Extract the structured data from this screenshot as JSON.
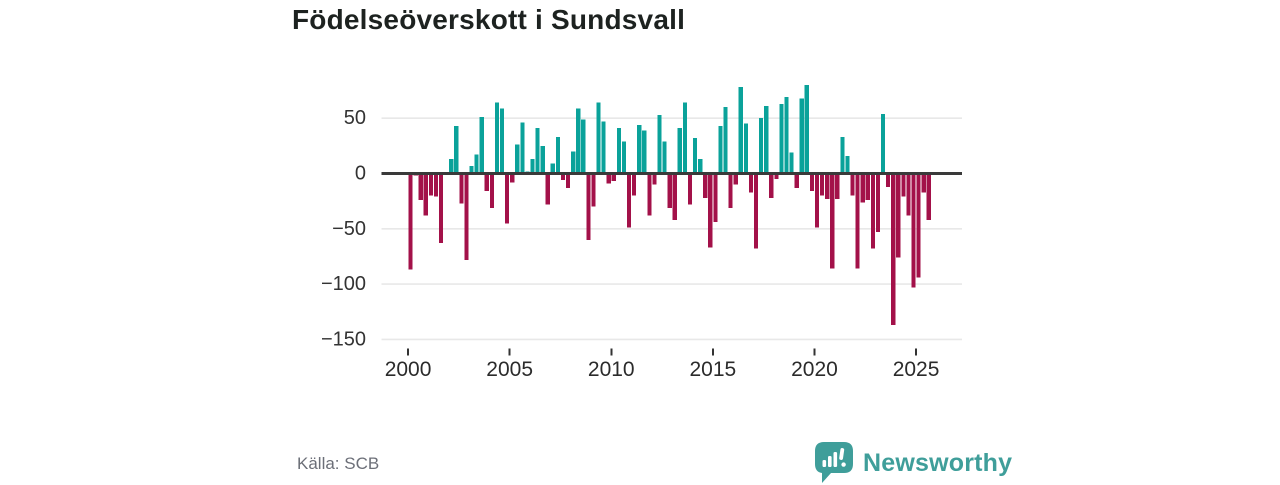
{
  "title": "Födelseöverskott i Sundsvall",
  "source": "Källa: SCB",
  "branding": {
    "name": "Newsworthy",
    "color": "#3f9e9a"
  },
  "chart_data": {
    "type": "bar",
    "title": "Födelseöverskott i Sundsvall",
    "xlabel": "",
    "ylabel": "",
    "x_start": "2000Q1",
    "frequency": "quarterly",
    "categories": [
      "2000Q1",
      "2000Q2",
      "2000Q3",
      "2000Q4",
      "2001Q1",
      "2001Q2",
      "2001Q3",
      "2001Q4",
      "2002Q1",
      "2002Q2",
      "2002Q3",
      "2002Q4",
      "2003Q1",
      "2003Q2",
      "2003Q3",
      "2003Q4",
      "2004Q1",
      "2004Q2",
      "2004Q3",
      "2004Q4",
      "2005Q1",
      "2005Q2",
      "2005Q3",
      "2005Q4",
      "2006Q1",
      "2006Q2",
      "2006Q3",
      "2006Q4",
      "2007Q1",
      "2007Q2",
      "2007Q3",
      "2007Q4",
      "2008Q1",
      "2008Q2",
      "2008Q3",
      "2008Q4",
      "2009Q1",
      "2009Q2",
      "2009Q3",
      "2009Q4",
      "2010Q1",
      "2010Q2",
      "2010Q3",
      "2010Q4",
      "2011Q1",
      "2011Q2",
      "2011Q3",
      "2011Q4",
      "2012Q1",
      "2012Q2",
      "2012Q3",
      "2012Q4",
      "2013Q1",
      "2013Q2",
      "2013Q3",
      "2013Q4",
      "2014Q1",
      "2014Q2",
      "2014Q3",
      "2014Q4",
      "2015Q1",
      "2015Q2",
      "2015Q3",
      "2015Q4",
      "2016Q1",
      "2016Q2",
      "2016Q3",
      "2016Q4",
      "2017Q1",
      "2017Q2",
      "2017Q3",
      "2017Q4",
      "2018Q1",
      "2018Q2",
      "2018Q3",
      "2018Q4",
      "2019Q1",
      "2019Q2",
      "2019Q3",
      "2019Q4",
      "2020Q1",
      "2020Q2",
      "2020Q3",
      "2020Q4",
      "2021Q1",
      "2021Q2",
      "2021Q3",
      "2021Q4",
      "2022Q1",
      "2022Q2",
      "2022Q3",
      "2022Q4",
      "2023Q1",
      "2023Q2",
      "2023Q3",
      "2023Q4",
      "2024Q1",
      "2024Q2",
      "2024Q3",
      "2024Q4",
      "2025Q1",
      "2025Q2",
      "2025Q3"
    ],
    "values": [
      -87,
      -2,
      -24,
      -38,
      -20,
      -21,
      -63,
      0,
      13,
      43,
      -27,
      -78,
      7,
      17,
      51,
      -16,
      -31,
      64,
      59,
      -45,
      -8,
      26,
      46,
      2,
      13,
      41,
      25,
      -28,
      9,
      33,
      -6,
      -13,
      20,
      59,
      49,
      -60,
      -30,
      64,
      47,
      -9,
      -7,
      41,
      29,
      -49,
      -20,
      44,
      39,
      -38,
      -10,
      53,
      29,
      -31,
      -42,
      41,
      64,
      -28,
      32,
      13,
      -22,
      -67,
      -44,
      43,
      60,
      -31,
      -10,
      78,
      45,
      -17,
      -68,
      50,
      61,
      -22,
      -5,
      63,
      69,
      19,
      -13,
      68,
      80,
      -16,
      -49,
      -20,
      -23,
      -86,
      -23,
      33,
      16,
      -20,
      -86,
      -26,
      -24,
      -68,
      -53,
      54,
      -12,
      -137,
      -76,
      -21,
      -38,
      -103,
      -94,
      -17,
      -42
    ],
    "positive_color": "#0aa29a",
    "negative_color": "#a31149",
    "ylim": [
      -160,
      90
    ],
    "yticks": [
      50,
      0,
      -50,
      -100,
      -150
    ],
    "ytick_labels": [
      "50",
      "0",
      "−50",
      "−100",
      "−150"
    ],
    "xticks": [
      2000,
      2005,
      2010,
      2015,
      2020,
      2025
    ],
    "xtick_labels": [
      "2000",
      "2005",
      "2010",
      "2015",
      "2020",
      "2025"
    ],
    "grid": true,
    "legend": false,
    "zero_line_color": "#3a3a3a",
    "grid_color": "#e8e8e8",
    "tick_label_color": "#2b2b2b"
  }
}
